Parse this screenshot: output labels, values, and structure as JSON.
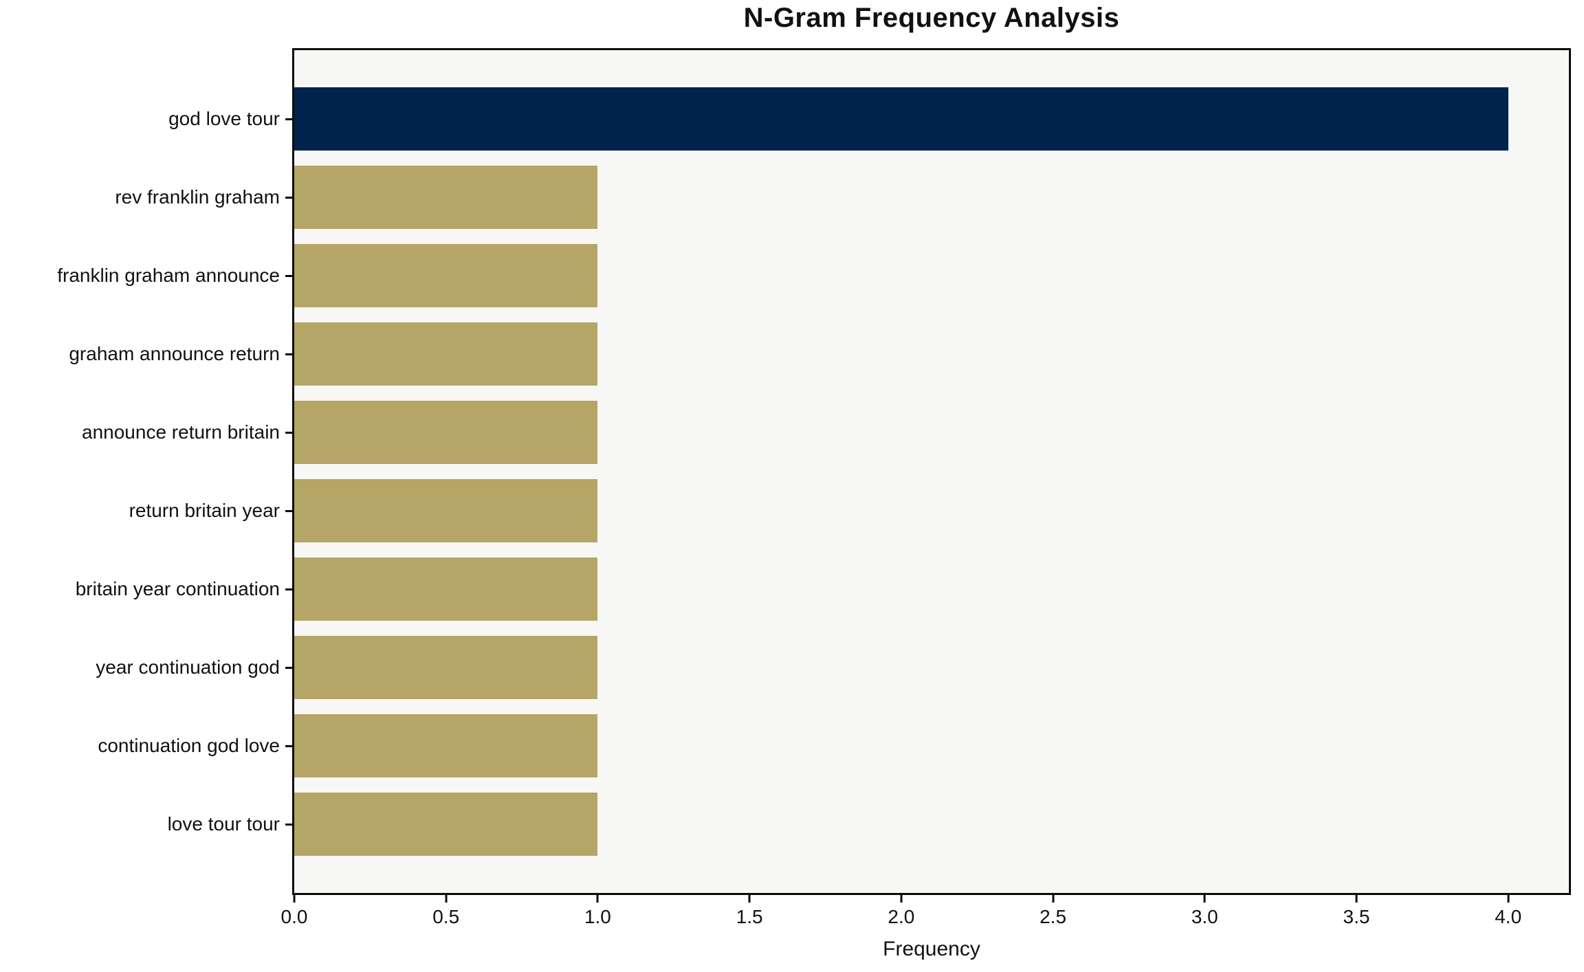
{
  "chart_data": {
    "type": "bar",
    "orientation": "horizontal",
    "title": "N-Gram Frequency Analysis",
    "xlabel": "Frequency",
    "ylabel": "",
    "categories": [
      "god love tour",
      "rev franklin graham",
      "franklin graham announce",
      "graham announce return",
      "announce return britain",
      "return britain year",
      "britain year continuation",
      "year continuation god",
      "continuation god love",
      "love tour tour"
    ],
    "values": [
      4,
      1,
      1,
      1,
      1,
      1,
      1,
      1,
      1,
      1
    ],
    "xlim": [
      0,
      4.2
    ],
    "x_tick_values": [
      0,
      0.5,
      1,
      1.5,
      2,
      2.5,
      3,
      3.5,
      4
    ],
    "x_tick_labels": [
      "0.0",
      "0.5",
      "1.0",
      "1.5",
      "2.0",
      "2.5",
      "3.0",
      "3.5",
      "4.0"
    ],
    "grid": false,
    "legend": null,
    "highlight_index": 0,
    "colors": {
      "bar_highlight": "#00234e",
      "bar_default": "#b5a566",
      "plot_background": "#f7f7f6",
      "frame": "#0c0c0c",
      "text": "#111111"
    }
  }
}
